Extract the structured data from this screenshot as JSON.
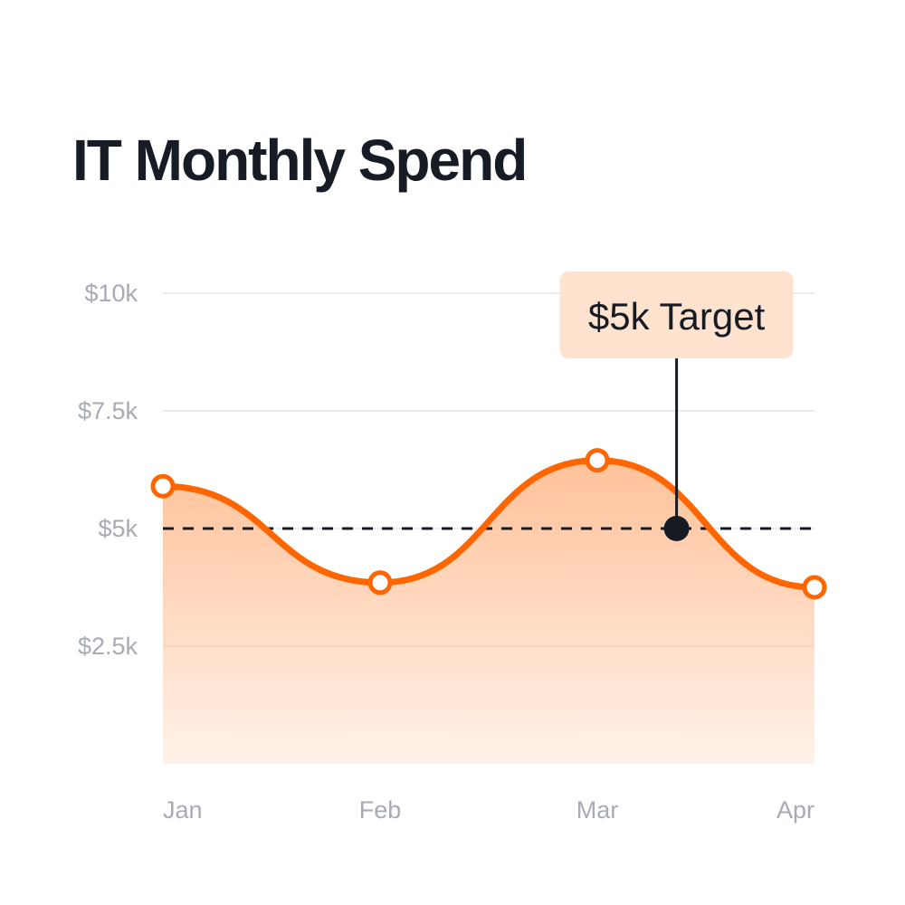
{
  "chart_data": {
    "type": "area",
    "title": "IT Monthly Spend",
    "categories": [
      "Jan",
      "Feb",
      "Mar",
      "Apr"
    ],
    "series": [
      {
        "values": [
          5900,
          3850,
          6450,
          3750
        ]
      }
    ],
    "y_ticks": [
      {
        "value": 10000,
        "label": "$10k"
      },
      {
        "value": 7500,
        "label": "$7.5k"
      },
      {
        "value": 5000,
        "label": "$5k"
      },
      {
        "value": 2500,
        "label": "$2.5k"
      }
    ],
    "ylim": [
      0,
      10000
    ],
    "grid": true,
    "target": {
      "value": 5000,
      "label": "$5k Target"
    },
    "colors": {
      "line": "#ff6600",
      "fill": "#ffbe94",
      "target_line": "#161b24",
      "callout_bg": "#ffe3cf",
      "grid": "#ececef",
      "tick_text": "#a8abb5"
    }
  }
}
